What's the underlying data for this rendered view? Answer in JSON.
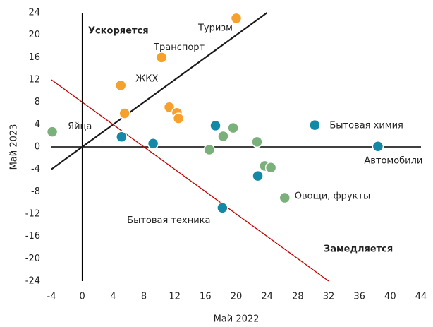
{
  "chart_data": {
    "type": "scatter",
    "xlabel": "Май 2022",
    "ylabel": "Май 2023",
    "xlim": [
      -4,
      44
    ],
    "ylim": [
      -24,
      24
    ],
    "xticks": [
      -4,
      0,
      4,
      8,
      12,
      16,
      20,
      24,
      28,
      32,
      36,
      40,
      44
    ],
    "yticks": [
      -24,
      -20,
      -16,
      -12,
      -8,
      -4,
      0,
      4,
      8,
      12,
      16,
      20,
      24
    ],
    "series": [
      {
        "color": "#f7a02c",
        "x": [
          20,
          10.3,
          5,
          5.5,
          11.3,
          12.3,
          12.5
        ],
        "values": [
          23,
          16,
          11,
          6,
          7.1,
          6.1,
          5.1
        ],
        "labels": [
          "Туризм",
          "Транспорт",
          "ЖКХ",
          null,
          null,
          null,
          null
        ]
      },
      {
        "color": "#1389a6",
        "x": [
          5.1,
          9.2,
          17.3,
          30.2,
          38.4,
          22.8,
          18.2
        ],
        "values": [
          1.8,
          0.6,
          3.8,
          3.9,
          0.1,
          -5.2,
          -10.9
        ],
        "labels": [
          null,
          null,
          null,
          "Бытовая химия",
          "Автомобили",
          null,
          "Бытовая техника"
        ]
      },
      {
        "color": "#7ab07a",
        "x": [
          -3.9,
          16.5,
          18.3,
          19.6,
          22.7,
          23.7,
          24.5,
          26.3
        ],
        "values": [
          2.7,
          -0.5,
          1.9,
          3.4,
          0.9,
          -3.4,
          -3.7,
          -9.1
        ],
        "labels": [
          "Яйца",
          null,
          null,
          null,
          null,
          null,
          null,
          "Овощи, фрукты"
        ]
      }
    ],
    "reference_lines": [
      {
        "color": "#1a1a1a",
        "x": [
          -4,
          24
        ],
        "y": [
          -4,
          24
        ]
      },
      {
        "color": "#c00000",
        "x": [
          -4,
          32
        ],
        "y": [
          12,
          -24
        ]
      }
    ],
    "annotations": [
      "Ускоряется",
      "Замедляется"
    ]
  }
}
